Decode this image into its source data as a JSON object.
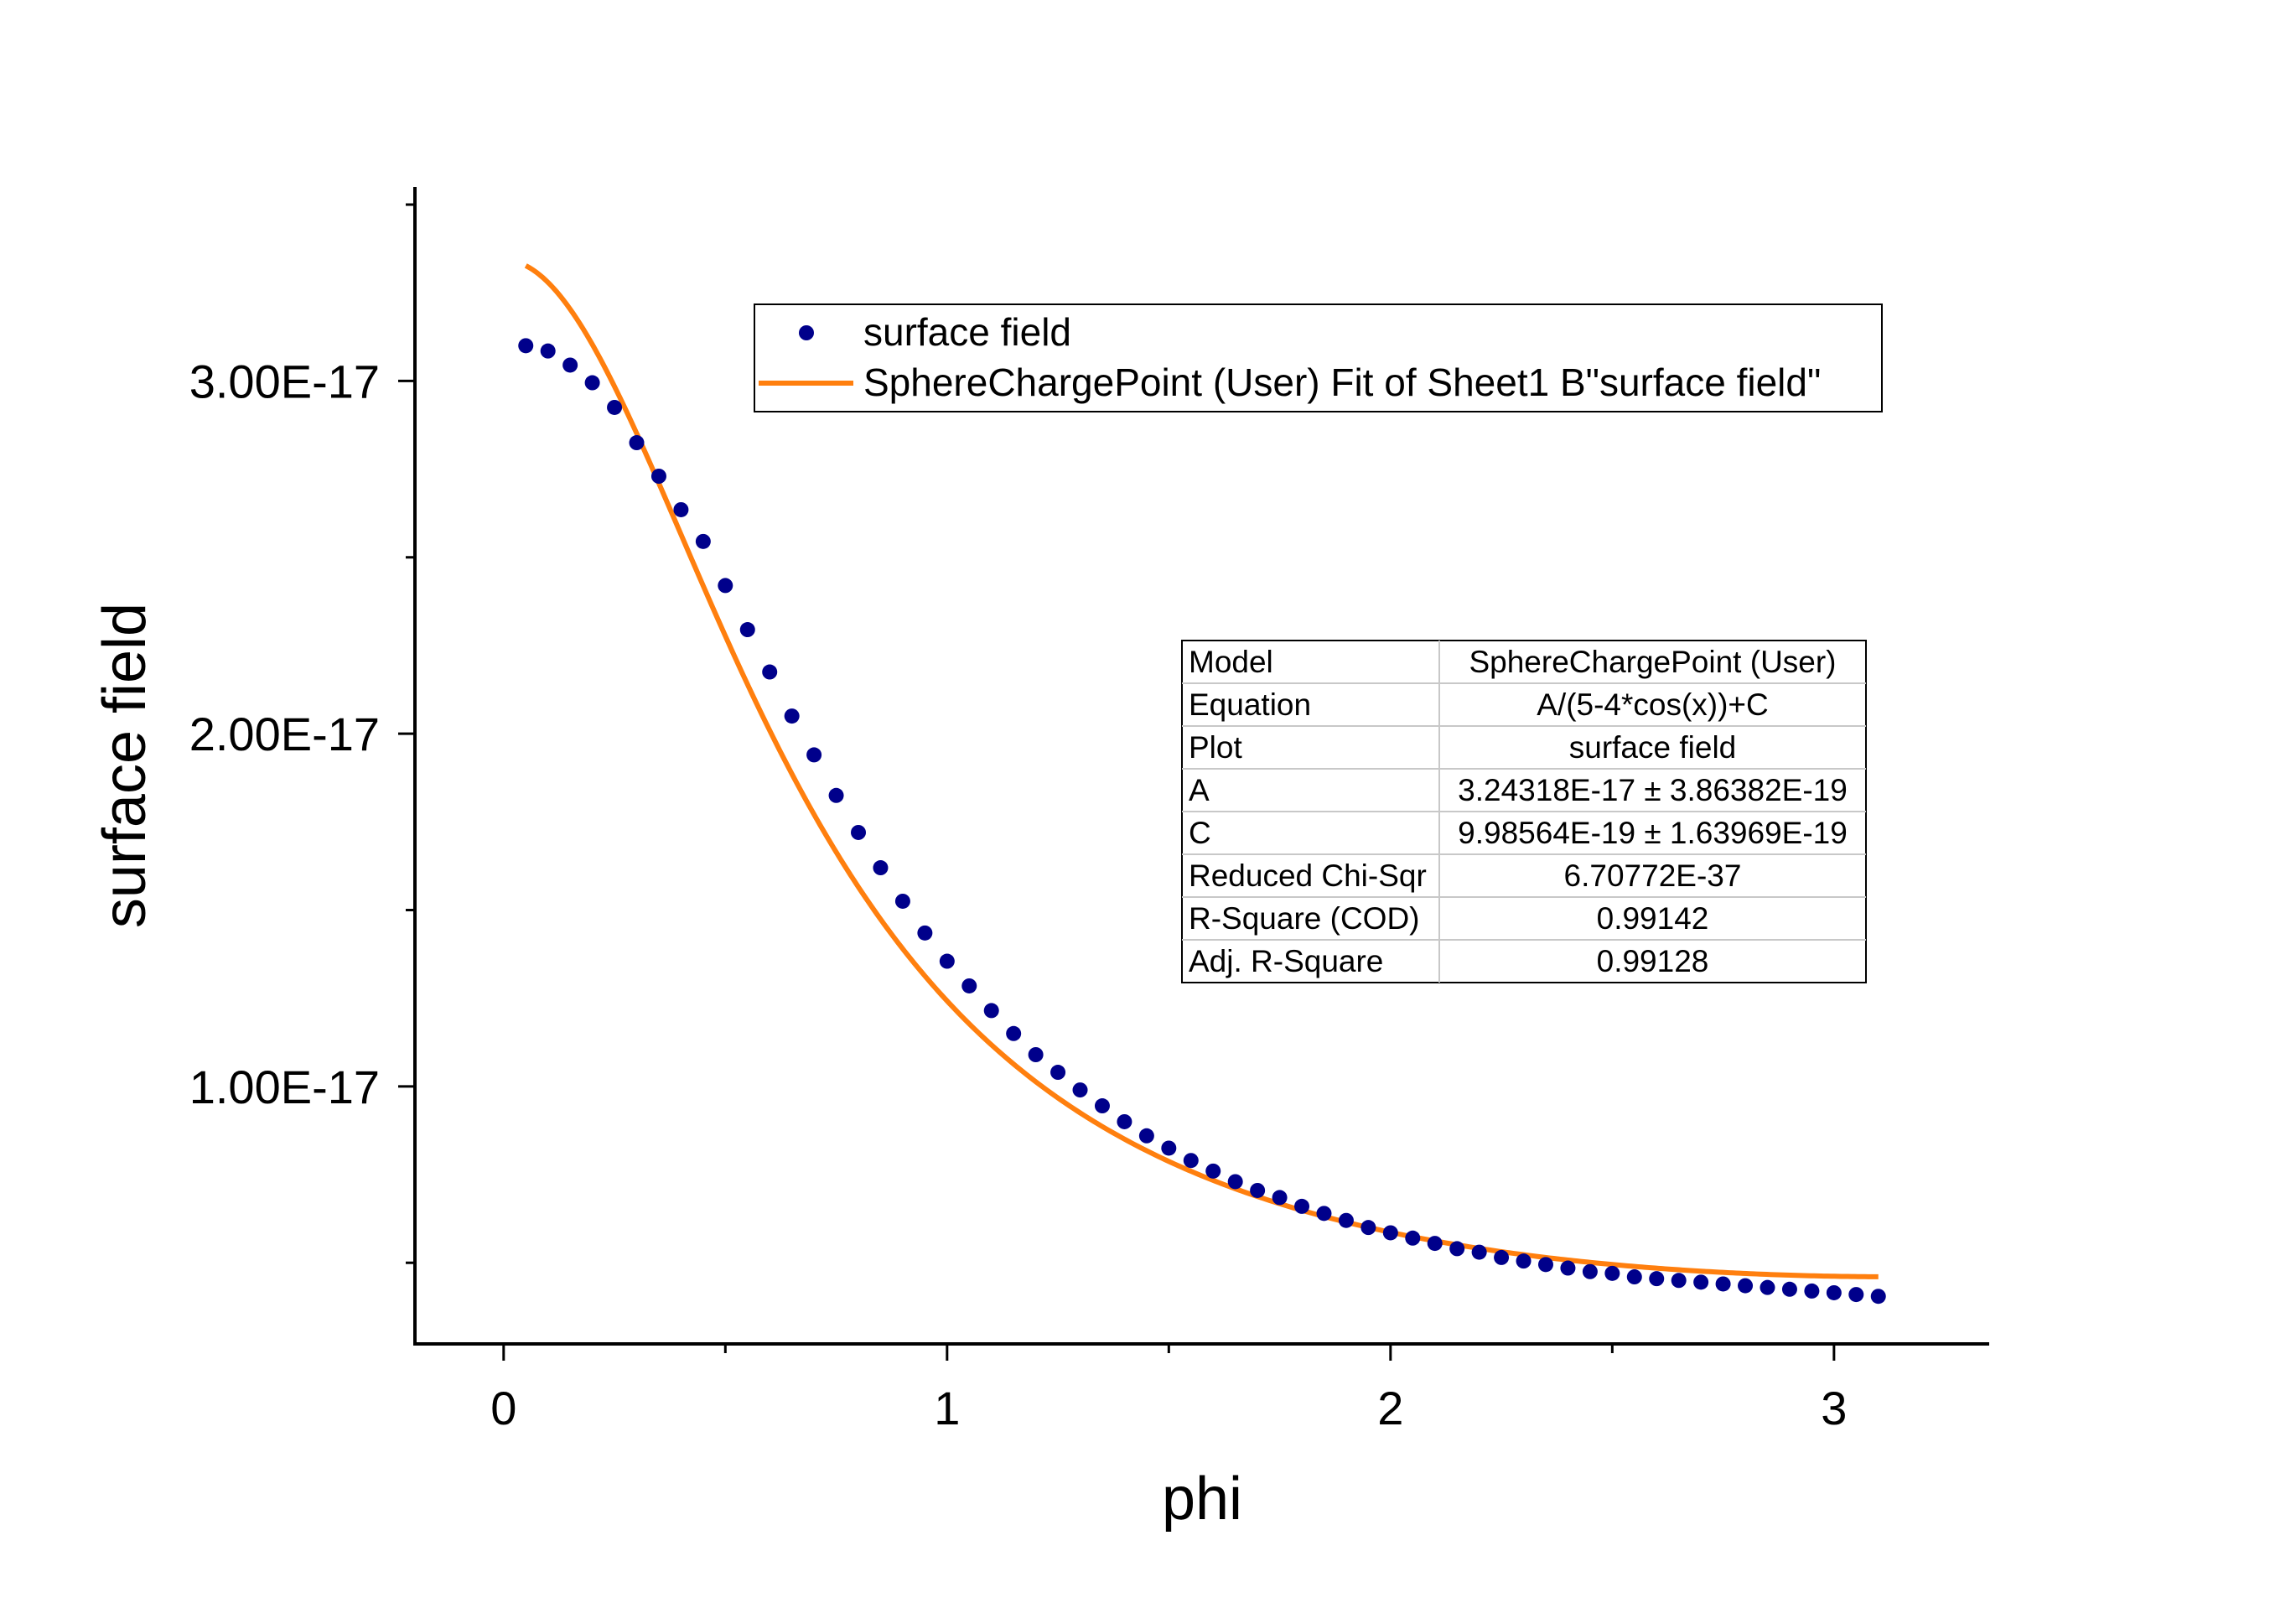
{
  "colors": {
    "points": "#00008B",
    "fit": "#FF7F0E",
    "axis": "#000000",
    "background": "#FFFFFF"
  },
  "chart_data": {
    "type": "scatter",
    "title": "",
    "xlabel": "phi",
    "ylabel": "surface field",
    "xlim": [
      -0.2,
      3.35
    ],
    "ylim": [
      2.7e-18,
      3.55e-17
    ],
    "x_ticks": [
      0,
      1,
      2,
      3
    ],
    "x_tick_labels": [
      "0",
      "1",
      "2",
      "3"
    ],
    "x_minor_ticks": [
      0.5,
      1.5,
      2.5
    ],
    "y_ticks": [
      1e-17,
      2e-17,
      3e-17
    ],
    "y_tick_labels": [
      "1.00E-17",
      "2.00E-17",
      "3.00E-17"
    ],
    "y_minor_ticks": [
      5e-18,
      1.5e-17,
      2.5e-17,
      3.5e-17
    ],
    "grid": false,
    "legend_position": "top-right",
    "series": [
      {
        "name": "surface field",
        "kind": "scatter",
        "x": [
          0.05,
          0.1,
          0.15,
          0.2,
          0.25,
          0.3,
          0.35,
          0.4,
          0.45,
          0.5,
          0.55,
          0.6,
          0.65,
          0.7,
          0.75,
          0.8,
          0.85,
          0.9,
          0.95,
          1.0,
          1.05,
          1.1,
          1.15,
          1.2,
          1.25,
          1.3,
          1.35,
          1.4,
          1.45,
          1.5,
          1.55,
          1.6,
          1.65,
          1.7,
          1.75,
          1.8,
          1.85,
          1.9,
          1.95,
          2.0,
          2.05,
          2.1,
          2.15,
          2.2,
          2.25,
          2.3,
          2.35,
          2.4,
          2.45,
          2.5,
          2.55,
          2.6,
          2.65,
          2.7,
          2.75,
          2.8,
          2.85,
          2.9,
          2.95,
          3.0,
          3.05,
          3.1
        ],
        "y": [
          3.1e-17,
          3.085e-17,
          3.045e-17,
          2.995e-17,
          2.925e-17,
          2.825e-17,
          2.73e-17,
          2.635e-17,
          2.545e-17,
          2.42e-17,
          2.295e-17,
          2.175e-17,
          2.05e-17,
          1.94e-17,
          1.825e-17,
          1.72e-17,
          1.62e-17,
          1.525e-17,
          1.435e-17,
          1.355e-17,
          1.285e-17,
          1.215e-17,
          1.15e-17,
          1.09e-17,
          1.04e-17,
          9.9e-18,
          9.45e-18,
          9e-18,
          8.6e-18,
          8.25e-18,
          7.9e-18,
          7.6e-18,
          7.3e-18,
          7.05e-18,
          6.85e-18,
          6.6e-18,
          6.4e-18,
          6.2e-18,
          6e-18,
          5.85e-18,
          5.7e-18,
          5.55e-18,
          5.4e-18,
          5.3e-18,
          5.15e-18,
          5.05e-18,
          4.95e-18,
          4.85e-18,
          4.75e-18,
          4.7e-18,
          4.6e-18,
          4.55e-18,
          4.5e-18,
          4.45e-18,
          4.4e-18,
          4.35e-18,
          4.3e-18,
          4.25e-18,
          4.2e-18,
          4.15e-18,
          4.1e-18,
          4.05e-18
        ]
      },
      {
        "name": "SphereChargePoint (User) Fit of Sheet1 B\"surface field\"",
        "kind": "line",
        "model": "A/(5-4*cos(x))+C",
        "params": {
          "A": 3.24318e-17,
          "C": 9.98564e-19
        },
        "x_range": [
          0.05,
          3.1
        ]
      }
    ],
    "table": {
      "rows": [
        [
          "Model",
          "SphereChargePoint (User)"
        ],
        [
          "Equation",
          "A/(5-4*cos(x))+C"
        ],
        [
          "Plot",
          "surface field"
        ],
        [
          "A",
          "3.24318E-17 ± 3.86382E-19"
        ],
        [
          "C",
          "9.98564E-19 ± 1.63969E-19"
        ],
        [
          "Reduced Chi-Sqr",
          "6.70772E-37"
        ],
        [
          "R-Square (COD)",
          "0.99142"
        ],
        [
          "Adj. R-Square",
          "0.99128"
        ]
      ]
    }
  }
}
